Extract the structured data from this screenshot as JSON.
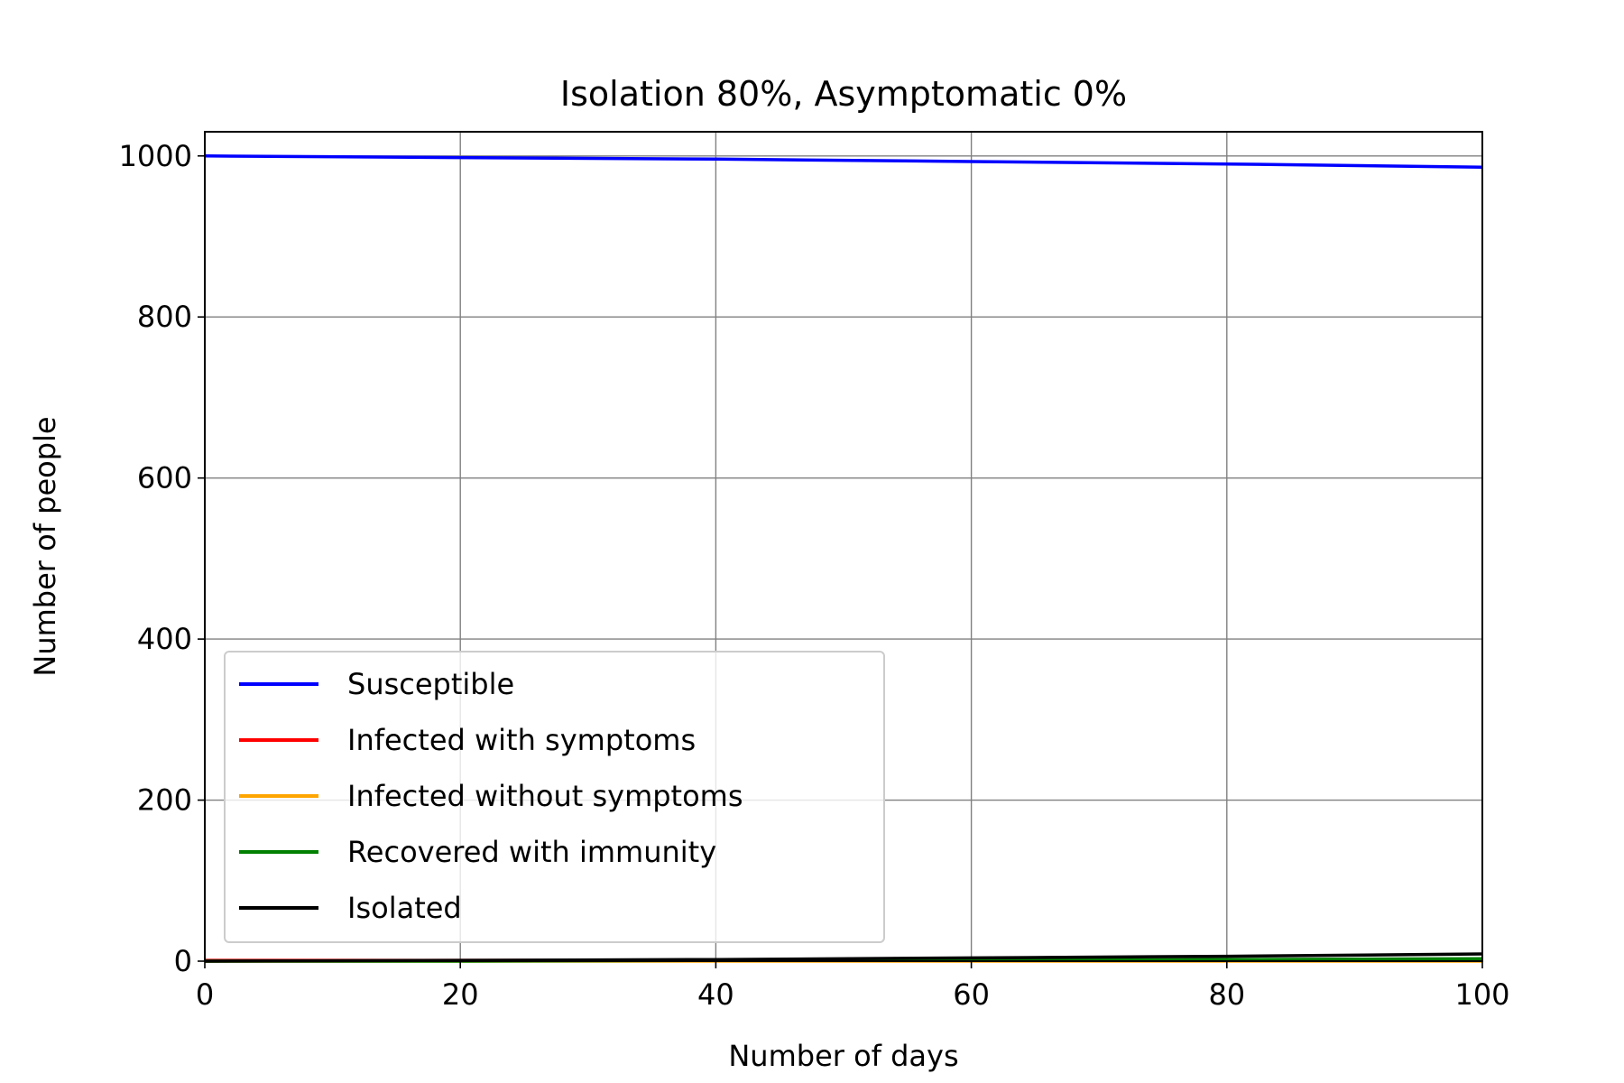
{
  "chart_data": {
    "type": "line",
    "title": "Isolation 80%, Asymptomatic 0%",
    "xlabel": "Number of days",
    "ylabel": "Number of people",
    "xlim": [
      0,
      100
    ],
    "ylim": [
      0,
      1030
    ],
    "xticks": [
      0,
      20,
      40,
      60,
      80,
      100
    ],
    "yticks": [
      0,
      200,
      400,
      600,
      800,
      1000
    ],
    "grid": true,
    "legend_position": "lower-left",
    "series": [
      {
        "name": "Susceptible",
        "color": "#0000ff",
        "x": [
          0,
          20,
          40,
          60,
          80,
          100
        ],
        "y": [
          1000,
          998,
          996,
          993,
          990,
          986
        ]
      },
      {
        "name": "Infected with symptoms",
        "color": "#ff0000",
        "x": [
          0,
          20,
          40,
          60,
          80,
          100
        ],
        "y": [
          1,
          1,
          1,
          1,
          1,
          2
        ]
      },
      {
        "name": "Infected without symptoms",
        "color": "#ffa500",
        "x": [
          0,
          20,
          40,
          60,
          80,
          100
        ],
        "y": [
          0,
          0,
          0,
          0,
          0,
          0
        ]
      },
      {
        "name": "Recovered with immunity",
        "color": "#008000",
        "x": [
          0,
          20,
          40,
          60,
          80,
          100
        ],
        "y": [
          0,
          0,
          1,
          1,
          2,
          3
        ]
      },
      {
        "name": "Isolated",
        "color": "#000000",
        "x": [
          0,
          20,
          40,
          60,
          80,
          100
        ],
        "y": [
          0,
          1,
          2,
          4,
          6,
          9
        ]
      }
    ]
  }
}
